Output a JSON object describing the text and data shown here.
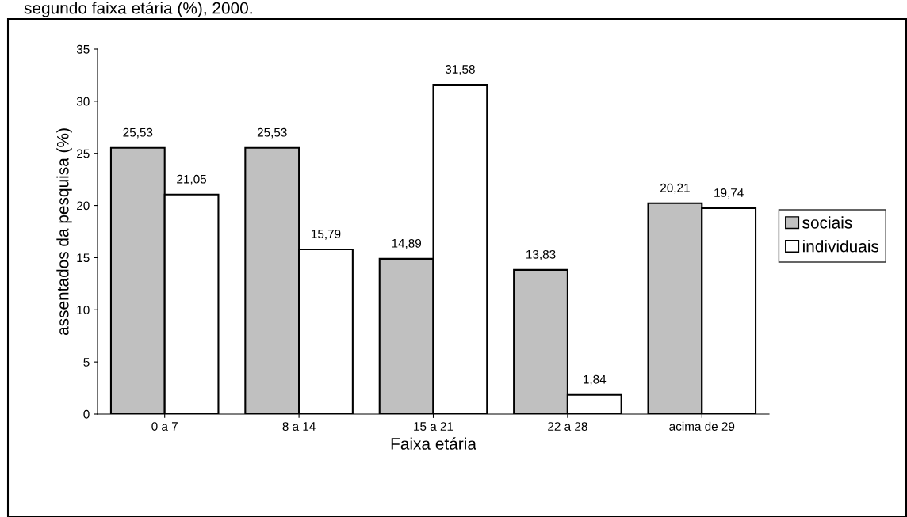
{
  "chart_data": {
    "type": "bar",
    "title": "segundo faixa etária (%), 2000.",
    "xlabel": "Faixa etária",
    "ylabel": "assentados da pesquisa (%)",
    "categories": [
      "0 a 7",
      "8 a 14",
      "15 a 21",
      "22 a 28",
      "acima de 29"
    ],
    "series": [
      {
        "name": "sociais",
        "color": "#c0c0c0",
        "values": [
          25.53,
          25.53,
          14.89,
          13.83,
          20.21
        ],
        "value_labels": [
          "25,53",
          "25,53",
          "14,89",
          "13,83",
          "20,21"
        ]
      },
      {
        "name": "individuais",
        "color": "#ffffff",
        "values": [
          21.05,
          15.79,
          31.58,
          1.84,
          19.74
        ],
        "value_labels": [
          "21,05",
          "15,79",
          "31,58",
          "1,84",
          "19,74"
        ]
      }
    ],
    "ylim": [
      0,
      35
    ],
    "yticks": [
      0,
      5,
      10,
      15,
      20,
      25,
      30,
      35
    ],
    "grid": false,
    "legend": "right"
  }
}
